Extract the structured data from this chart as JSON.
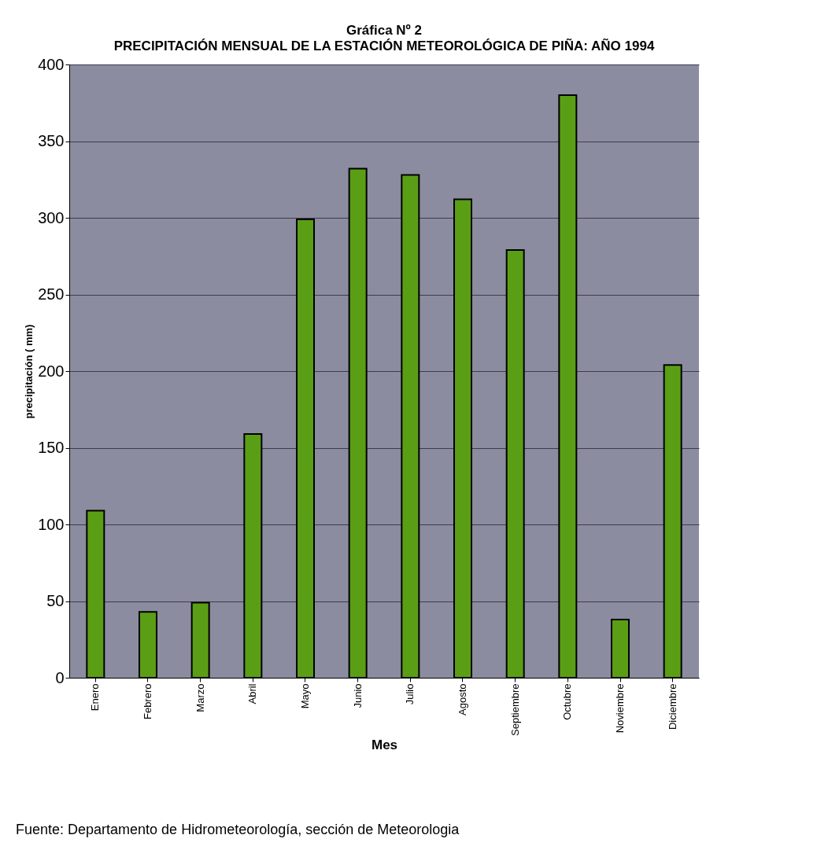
{
  "chart_data": {
    "type": "bar",
    "title": "Gráfica Nº 2",
    "subtitle": "PRECIPITACIÓN MENSUAL DE LA ESTACIÓN METEOROLÓGICA DE PIÑA: AÑO 1994",
    "xlabel": "Mes",
    "ylabel": "precipitación  ( mm)",
    "categories": [
      "Enero",
      "Febrero",
      "Marzo",
      "Abril",
      "Mayo",
      "Junio",
      "Julio",
      "Agosto",
      "Septiembre",
      "Octubre",
      "Noviembre",
      "Diciembre"
    ],
    "values": [
      109,
      43,
      49,
      159,
      299,
      332,
      328,
      312,
      279,
      380,
      38,
      204
    ],
    "color": "#5a9e16",
    "ylim": [
      0,
      400
    ],
    "yticks": [
      0,
      50,
      100,
      150,
      200,
      250,
      300,
      350,
      400
    ],
    "grid": "y",
    "annotations": [
      "Fuente: Departamento de Hidrometeorología, sección de Meteorologia"
    ]
  }
}
